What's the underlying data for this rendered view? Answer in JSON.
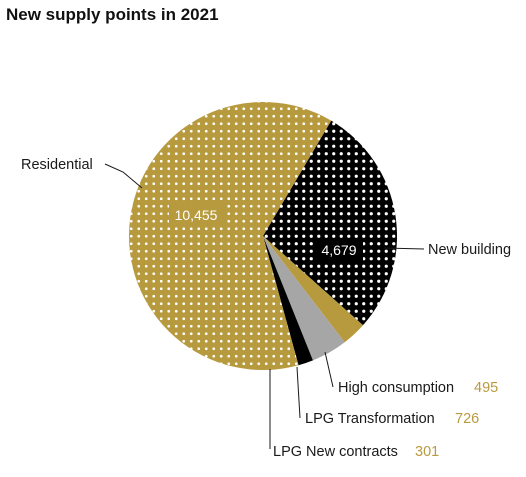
{
  "chart_data": {
    "type": "pie",
    "title": "New supply points in 2021",
    "slices": [
      {
        "label": "New building",
        "value": 4679,
        "value_label": "4,679",
        "color": "#000000",
        "pattern": "white-dots"
      },
      {
        "label": "High consumption",
        "value": 495,
        "value_label": "495",
        "color": "#b89a3e",
        "pattern": "solid"
      },
      {
        "label": "LPG Transformation",
        "value": 726,
        "value_label": "726",
        "color": "#a6a6a6",
        "pattern": "solid"
      },
      {
        "label": "LPG New contracts",
        "value": 301,
        "value_label": "301",
        "color": "#000000",
        "pattern": "solid"
      },
      {
        "label": "Residential",
        "value": 10455,
        "value_label": "10,455",
        "color": "#b89a3e",
        "pattern": "white-dots"
      }
    ],
    "colors": {
      "value_text": "#b89a3e",
      "text": "#1a1a1a"
    }
  }
}
